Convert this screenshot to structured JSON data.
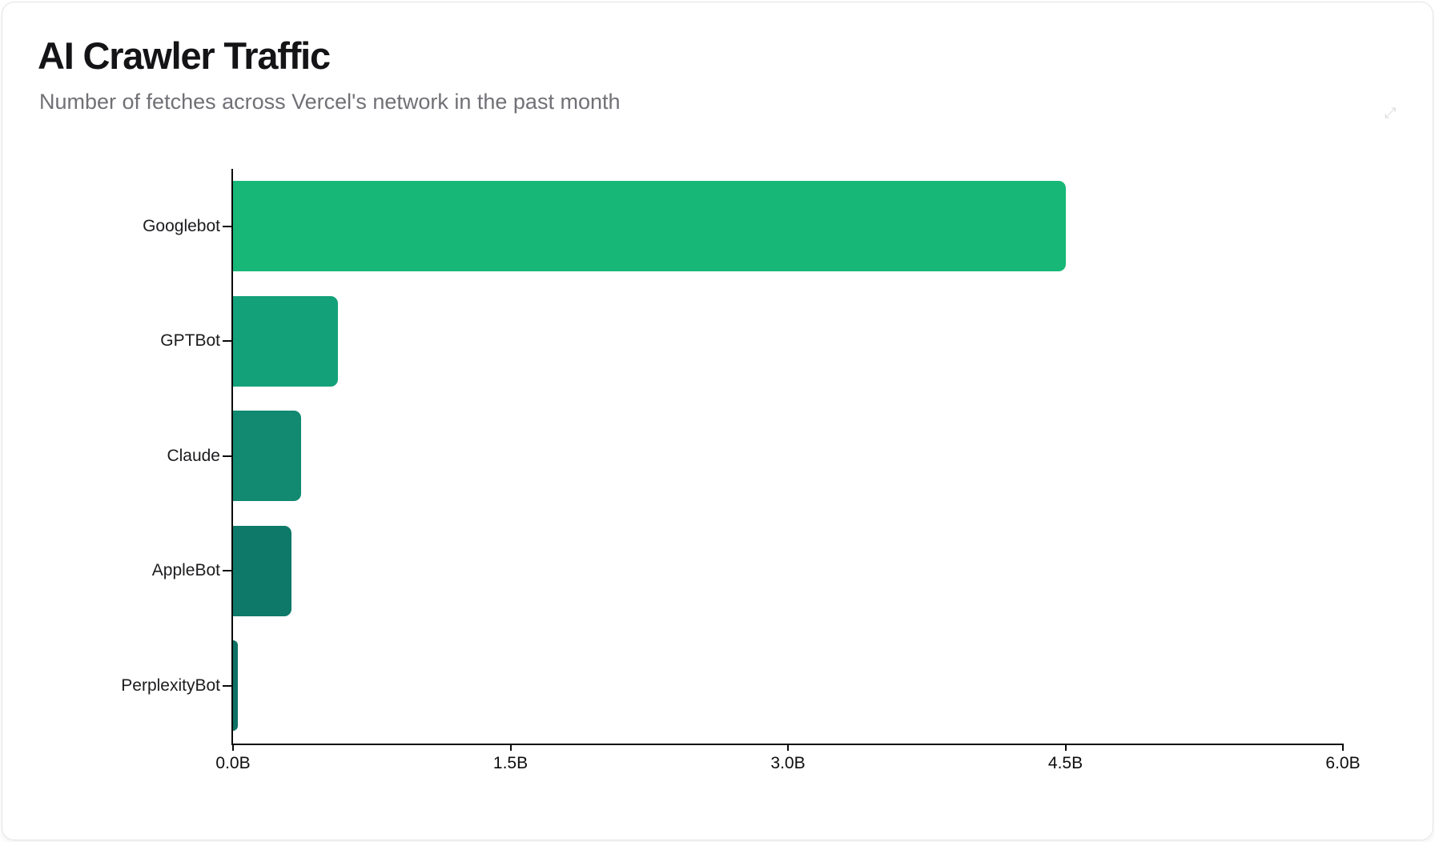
{
  "chart_data": {
    "type": "bar",
    "orientation": "horizontal",
    "title": "AI Crawler Traffic",
    "subtitle": "Number of fetches across Vercel's network in the past month",
    "categories": [
      "Googlebot",
      "GPTBot",
      "Claude",
      "AppleBot",
      "PerplexityBot"
    ],
    "values_billions": [
      4.5,
      0.569,
      0.37,
      0.314,
      0.0247
    ],
    "xlim": [
      0,
      6
    ],
    "x_ticks": [
      {
        "value": 0,
        "label": "0.0B"
      },
      {
        "value": 1.5,
        "label": "1.5B"
      },
      {
        "value": 3,
        "label": "3.0B"
      },
      {
        "value": 4.5,
        "label": "4.5B"
      },
      {
        "value": 6,
        "label": "6.0B"
      }
    ],
    "grid": false,
    "legend": false,
    "bar_colors": [
      "#17B877",
      "#13A179",
      "#128971",
      "#0E7968",
      "#0D7164"
    ],
    "textured_bars": [
      "AppleBot",
      "PerplexityBot"
    ],
    "axis_color": "#0a0a0a",
    "title_color": "#141417",
    "subtitle_color": "#707076"
  },
  "icons": {
    "resize_cursor": "⤢"
  }
}
